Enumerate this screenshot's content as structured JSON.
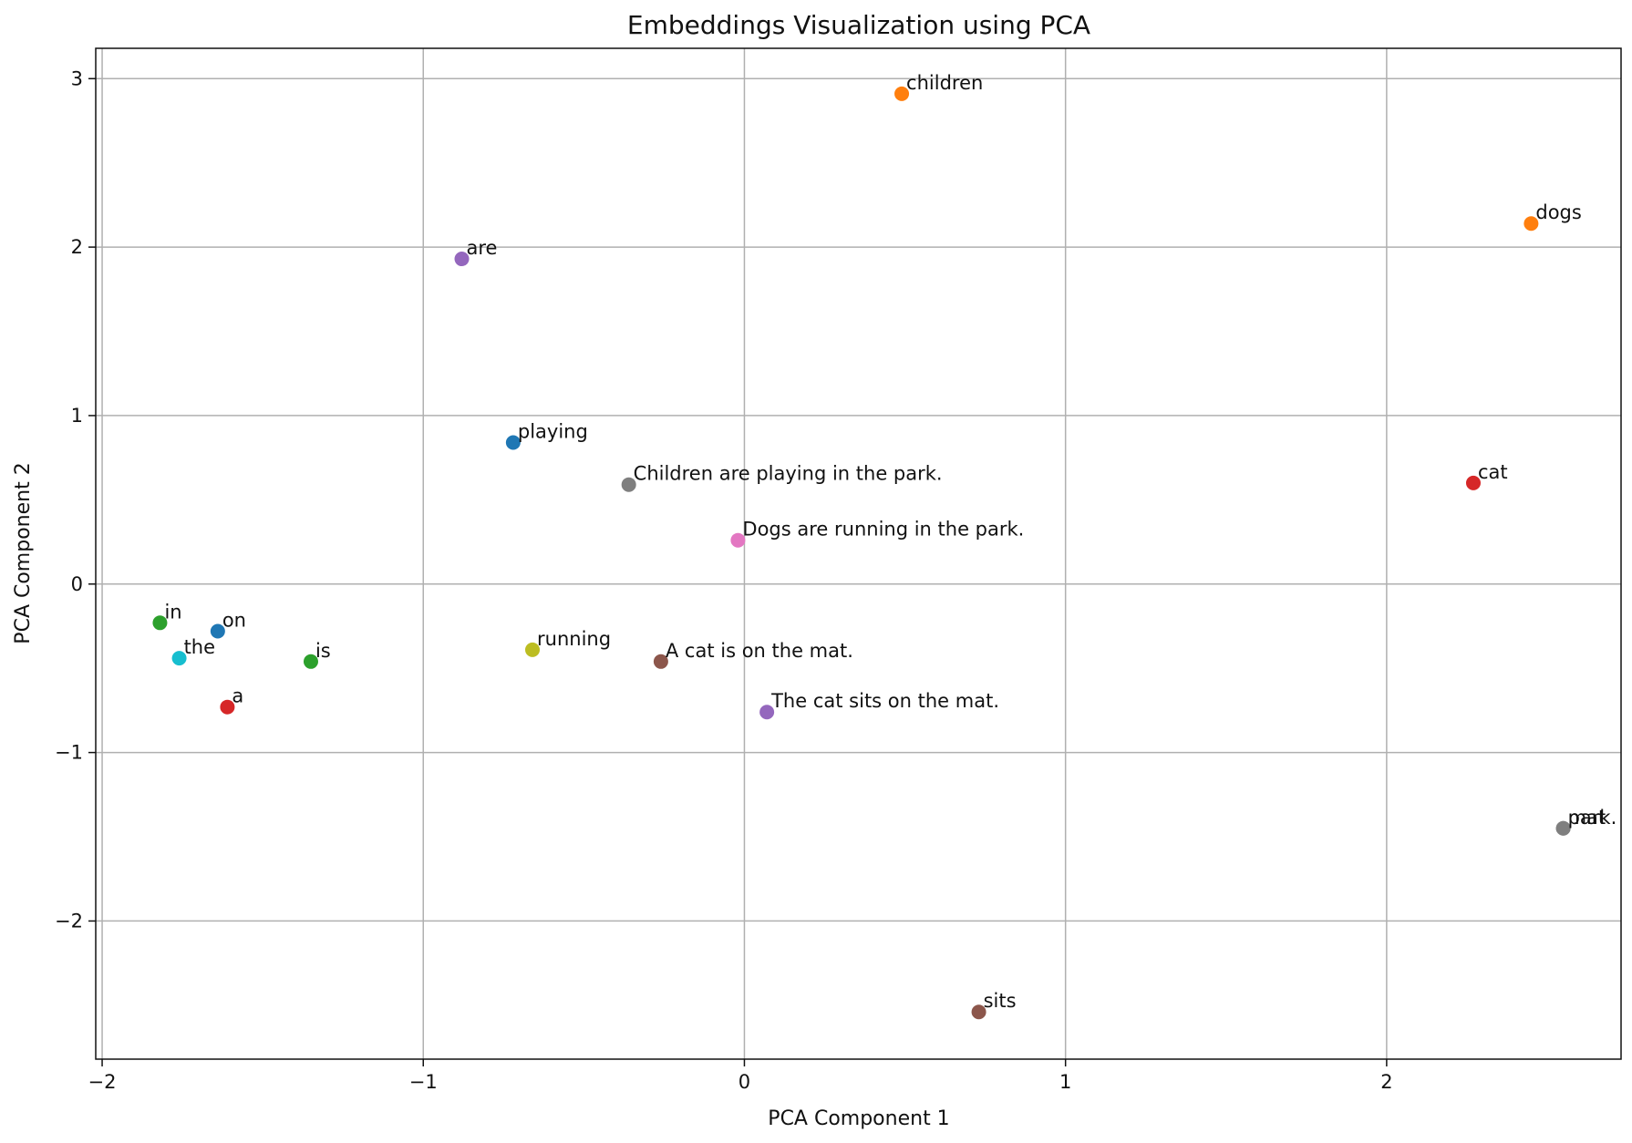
{
  "chart_data": {
    "type": "scatter",
    "title": "Embeddings Visualization using PCA",
    "xlabel": "PCA Component 1",
    "ylabel": "PCA Component 2",
    "xlim": [
      -2.02,
      2.73
    ],
    "ylim": [
      -2.82,
      3.18
    ],
    "grid": true,
    "x_ticks": [
      -2,
      -1,
      0,
      1,
      2
    ],
    "y_ticks": [
      -2,
      -1,
      0,
      1,
      2,
      3
    ],
    "x_tick_labels": [
      "−2",
      "−1",
      "0",
      "1",
      "2"
    ],
    "y_tick_labels": [
      "−2",
      "−1",
      "0",
      "1",
      "2",
      "3"
    ],
    "points": [
      {
        "label": "children",
        "x": 0.49,
        "y": 2.91,
        "color": "#ff7f0e"
      },
      {
        "label": "dogs",
        "x": 2.45,
        "y": 2.14,
        "color": "#ff7f0e"
      },
      {
        "label": "are",
        "x": -0.88,
        "y": 1.93,
        "color": "#9467bd"
      },
      {
        "label": "playing",
        "x": -0.72,
        "y": 0.84,
        "color": "#1f77b4"
      },
      {
        "label": "Children are playing in the park.",
        "x": -0.36,
        "y": 0.59,
        "color": "#7f7f7f"
      },
      {
        "label": "cat",
        "x": 2.27,
        "y": 0.6,
        "color": "#d62728"
      },
      {
        "label": "Dogs are running in the park.",
        "x": -0.02,
        "y": 0.26,
        "color": "#e377c2"
      },
      {
        "label": "in",
        "x": -1.82,
        "y": -0.23,
        "color": "#2ca02c"
      },
      {
        "label": "on",
        "x": -1.64,
        "y": -0.28,
        "color": "#1f77b4"
      },
      {
        "label": "the",
        "x": -1.76,
        "y": -0.44,
        "color": "#17becf"
      },
      {
        "label": "is",
        "x": -1.35,
        "y": -0.46,
        "color": "#2ca02c"
      },
      {
        "label": "running",
        "x": -0.66,
        "y": -0.39,
        "color": "#bcbd22"
      },
      {
        "label": "A cat is on the mat.",
        "x": -0.26,
        "y": -0.46,
        "color": "#8c564b"
      },
      {
        "label": "a",
        "x": -1.61,
        "y": -0.73,
        "color": "#d62728"
      },
      {
        "label": "The cat sits on the mat.",
        "x": 0.07,
        "y": -0.76,
        "color": "#9467bd"
      },
      {
        "label": "mat",
        "x": 2.55,
        "y": -1.45,
        "color": "#7f7f7f"
      },
      {
        "label": "park.",
        "x": 2.55,
        "y": -1.45,
        "color": "#7f7f7f"
      },
      {
        "label": "sits",
        "x": 0.73,
        "y": -2.54,
        "color": "#8c564b"
      }
    ]
  }
}
